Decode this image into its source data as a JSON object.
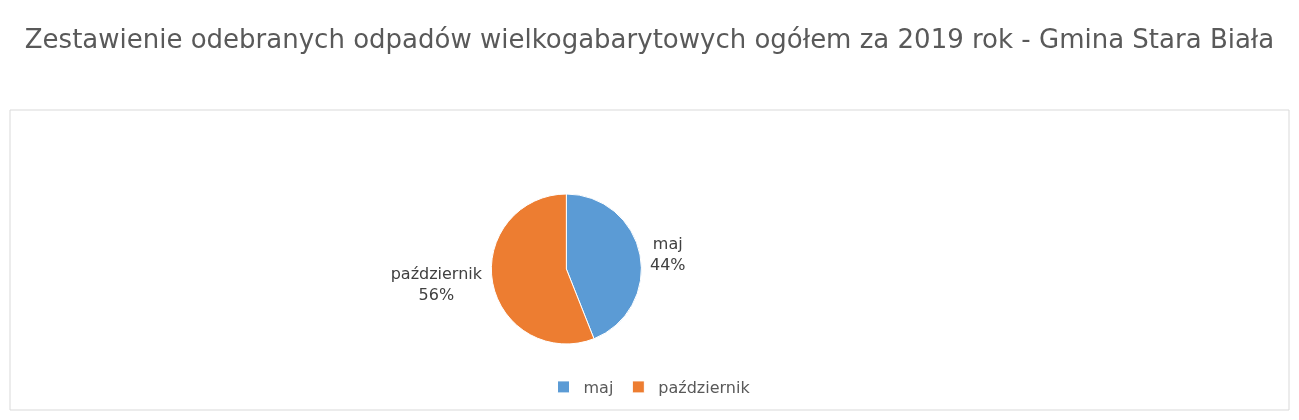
{
  "chart_data": {
    "type": "pie",
    "title": "Zestawienie odebranych odpadów wielkogabarytowych ogółem za 2019 rok - Gmina Stara Biała",
    "categories": [
      "maj",
      "październik"
    ],
    "values": [
      44,
      56
    ],
    "value_labels": [
      "44%",
      "56%"
    ],
    "colors": [
      "#5b9bd5",
      "#ed7d31"
    ],
    "legend": "bottom"
  }
}
